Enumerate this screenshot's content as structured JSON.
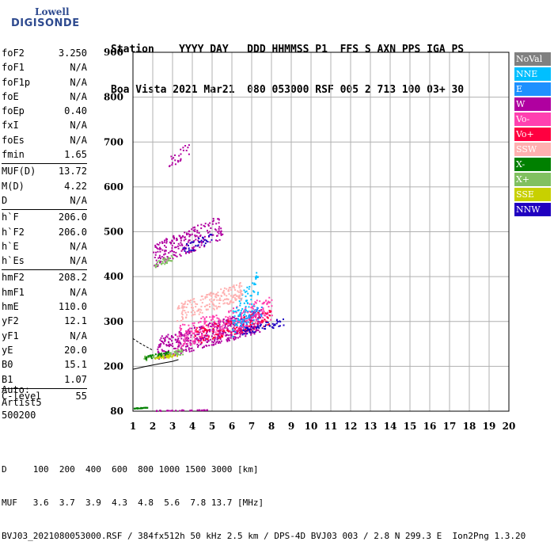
{
  "logo": {
    "line1": "Lowell",
    "line2": "DIGISONDE"
  },
  "header": {
    "line1": "Station    YYYY DAY   DDD HHMMSS P1  FFS S AXN PPS IGA PS",
    "line2": "Boa Vista 2021 Mar21  080 053000 RSF 005 2 713 100 03+ 30"
  },
  "params": [
    {
      "label": "foF2",
      "value": "3.250"
    },
    {
      "label": "foF1",
      "value": "N/A"
    },
    {
      "label": "foF1p",
      "value": "N/A"
    },
    {
      "label": "foE",
      "value": "N/A"
    },
    {
      "label": "foEp",
      "value": "0.40"
    },
    {
      "label": "fxI",
      "value": "N/A"
    },
    {
      "label": "foEs",
      "value": "N/A"
    },
    {
      "label": "fmin",
      "value": "1.65"
    },
    {
      "label": "MUF(D)",
      "value": "13.72"
    },
    {
      "label": "M(D)",
      "value": "4.22"
    },
    {
      "label": "D",
      "value": "N/A"
    },
    {
      "label": "h`F",
      "value": "206.0"
    },
    {
      "label": "h`F2",
      "value": "206.0"
    },
    {
      "label": "h`E",
      "value": "N/A"
    },
    {
      "label": "h`Es",
      "value": "N/A"
    },
    {
      "label": "hmF2",
      "value": "208.2"
    },
    {
      "label": "hmF1",
      "value": "N/A"
    },
    {
      "label": "hmE",
      "value": "110.0"
    },
    {
      "label": "yF2",
      "value": "12.1"
    },
    {
      "label": "yF1",
      "value": "N/A"
    },
    {
      "label": "yE",
      "value": "20.0"
    },
    {
      "label": "B0",
      "value": "15.1"
    },
    {
      "label": "B1",
      "value": "1.07"
    },
    {
      "label": "C-level",
      "value": "55"
    }
  ],
  "auto": {
    "line1": "Auto:",
    "line2": "Artist5",
    "line3": "500200"
  },
  "footer": {
    "line1": "D     100  200  400  600  800 1000 1500 3000 [km]",
    "line2": "MUF   3.6  3.7  3.9  4.3  4.8  5.6  7.8 13.7 [MHz]",
    "line3": "BVJ03_2021080053000.RSF / 384fx512h 50 kHz 2.5 km / DPS-4D BVJ03 003 / 2.8 N 299.3 E  Ion2Png 1.3.20"
  },
  "legend": [
    {
      "label": "NoVal",
      "color": "#808080"
    },
    {
      "label": "NNE",
      "color": "#00bfff"
    },
    {
      "label": "E",
      "color": "#1e90ff"
    },
    {
      "label": "W",
      "color": "#b000a0"
    },
    {
      "label": "Vo-",
      "color": "#ff40b0"
    },
    {
      "label": "Vo+",
      "color": "#ff0040"
    },
    {
      "label": "SSW",
      "color": "#ffb0b0"
    },
    {
      "label": "X-",
      "color": "#008000"
    },
    {
      "label": "X+",
      "color": "#80c060"
    },
    {
      "label": "SSE",
      "color": "#c8d000"
    },
    {
      "label": "NNW",
      "color": "#2000c0"
    }
  ],
  "chart_data": {
    "type": "scatter",
    "x_ticks": [
      "1",
      "2",
      "3",
      "4",
      "5",
      "6",
      "7",
      "8",
      "9",
      "10",
      "11",
      "12",
      "13",
      "14",
      "15",
      "16",
      "17",
      "18",
      "19",
      "20"
    ],
    "y_ticks": [
      "80",
      "200",
      "300",
      "400",
      "500",
      "600",
      "700",
      "800",
      "900"
    ],
    "xlim": [
      1,
      20
    ],
    "ylim": [
      80,
      900
    ],
    "grid": true,
    "legend_position": "right",
    "clusters": [
      {
        "direction": "W",
        "color": "#b000a0",
        "x_range": [
          2.2,
          7.5
        ],
        "y_range": [
          215,
          330
        ],
        "count": 500
      },
      {
        "direction": "Vo-",
        "color": "#ff40b0",
        "x_range": [
          3.2,
          8.0
        ],
        "y_range": [
          240,
          360
        ],
        "count": 260
      },
      {
        "direction": "Vo+",
        "color": "#ff0040",
        "x_range": [
          4.0,
          8.0
        ],
        "y_range": [
          250,
          330
        ],
        "count": 120
      },
      {
        "direction": "NNE",
        "color": "#00bfff",
        "x_range": [
          6.0,
          7.3
        ],
        "y_range": [
          260,
          420
        ],
        "count": 80
      },
      {
        "direction": "NNW",
        "color": "#2000c0",
        "x_range": [
          6.5,
          8.6
        ],
        "y_range": [
          270,
          310
        ],
        "count": 60
      },
      {
        "direction": "E",
        "color": "#1e90ff",
        "x_range": [
          6.4,
          7.5
        ],
        "y_range": [
          280,
          340
        ],
        "count": 40
      },
      {
        "direction": "SSW",
        "color": "#ffb0b0",
        "x_range": [
          3.2,
          6.5
        ],
        "y_range": [
          300,
          390
        ],
        "count": 200
      },
      {
        "direction": "X+",
        "color": "#80c060",
        "x_range": [
          1.5,
          3.5
        ],
        "y_range": [
          212,
          240
        ],
        "count": 80
      },
      {
        "direction": "X-",
        "color": "#008000",
        "x_range": [
          1.6,
          2.8
        ],
        "y_range": [
          215,
          235
        ],
        "count": 40
      },
      {
        "direction": "SSE",
        "color": "#c8d000",
        "x_range": [
          2.0,
          3.2
        ],
        "y_range": [
          215,
          230
        ],
        "count": 30
      },
      {
        "direction": "W",
        "color": "#b000a0",
        "x_range": [
          2.0,
          5.5
        ],
        "y_range": [
          420,
          540
        ],
        "count": 220
      },
      {
        "direction": "NNW",
        "color": "#2000c0",
        "x_range": [
          3.5,
          5.0
        ],
        "y_range": [
          450,
          500
        ],
        "count": 40
      },
      {
        "direction": "X+",
        "color": "#80c060",
        "x_range": [
          2.0,
          3.0
        ],
        "y_range": [
          420,
          450
        ],
        "count": 30
      },
      {
        "direction": "W",
        "color": "#b000a0",
        "x_range": [
          2.8,
          3.8
        ],
        "y_range": [
          640,
          700
        ],
        "count": 25
      },
      {
        "direction": "X-",
        "color": "#008000",
        "x_range": [
          1.0,
          1.7
        ],
        "y_range": [
          88,
          92
        ],
        "count": 25
      },
      {
        "direction": "W",
        "color": "#b000a0",
        "x_range": [
          2.0,
          4.8
        ],
        "y_range": [
          82,
          86
        ],
        "count": 30
      }
    ],
    "traces": [
      {
        "x": [
          1.0,
          1.5,
          2.0,
          2.5,
          3.0,
          3.3
        ],
        "y": [
          192,
          198,
          203,
          207,
          211,
          215
        ]
      },
      {
        "x": [
          1.0,
          1.3,
          1.7,
          2.0
        ],
        "y": [
          262,
          253,
          243,
          236
        ]
      }
    ]
  }
}
